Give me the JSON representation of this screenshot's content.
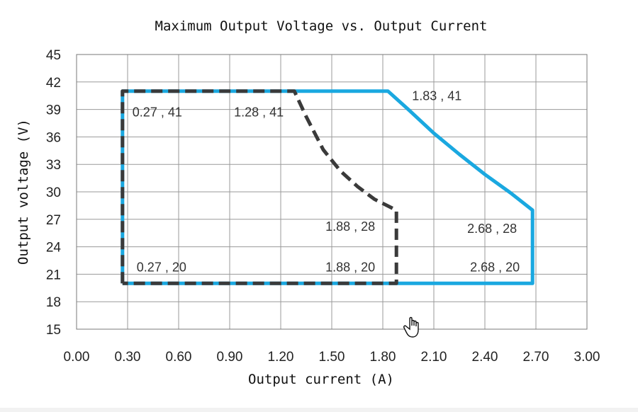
{
  "chart_data": {
    "type": "line",
    "title": "Maximum Output Voltage vs. Output Current",
    "xlabel": "Output current (A)",
    "ylabel": "Output voltage (V)",
    "xlim": [
      0.0,
      3.0
    ],
    "ylim": [
      15,
      45
    ],
    "xticks": [
      "0.00",
      "0.30",
      "0.60",
      "0.90",
      "1.20",
      "1.50",
      "1.80",
      "2.10",
      "2.40",
      "2.70",
      "3.00"
    ],
    "yticks": [
      "15",
      "18",
      "21",
      "24",
      "27",
      "30",
      "33",
      "36",
      "39",
      "42",
      "45"
    ],
    "grid": true,
    "series": [
      {
        "color": "#1aa8e0",
        "style": "solid",
        "x": [
          0.27,
          0.27,
          1.83,
          1.95,
          2.1,
          2.25,
          2.4,
          2.55,
          2.68,
          2.68,
          0.27
        ],
        "y": [
          20,
          41,
          41,
          39,
          36.4,
          34.1,
          31.9,
          29.9,
          28,
          20,
          20
        ]
      },
      {
        "color": "#3a3a3a",
        "style": "dashed",
        "x": [
          0.27,
          0.27,
          1.28,
          1.35,
          1.45,
          1.55,
          1.65,
          1.75,
          1.88,
          1.88,
          0.27
        ],
        "y": [
          20,
          41,
          41,
          38.2,
          34.6,
          32.3,
          30.6,
          29.2,
          28,
          20,
          20
        ]
      }
    ],
    "annotations": [
      {
        "text": "0.27 , 41",
        "x": 0.27,
        "y": 41
      },
      {
        "text": "1.28 , 41",
        "x": 1.28,
        "y": 41
      },
      {
        "text": "1.83 , 41",
        "x": 1.83,
        "y": 41
      },
      {
        "text": "1.88 , 28",
        "x": 1.88,
        "y": 28
      },
      {
        "text": "2.68 , 28",
        "x": 2.68,
        "y": 28
      },
      {
        "text": "0.27 , 20",
        "x": 0.27,
        "y": 20
      },
      {
        "text": "1.88 , 20",
        "x": 1.88,
        "y": 20
      },
      {
        "text": "2.68 , 20",
        "x": 2.68,
        "y": 20
      }
    ]
  },
  "cursor_icon": "hand-pointer-icon"
}
